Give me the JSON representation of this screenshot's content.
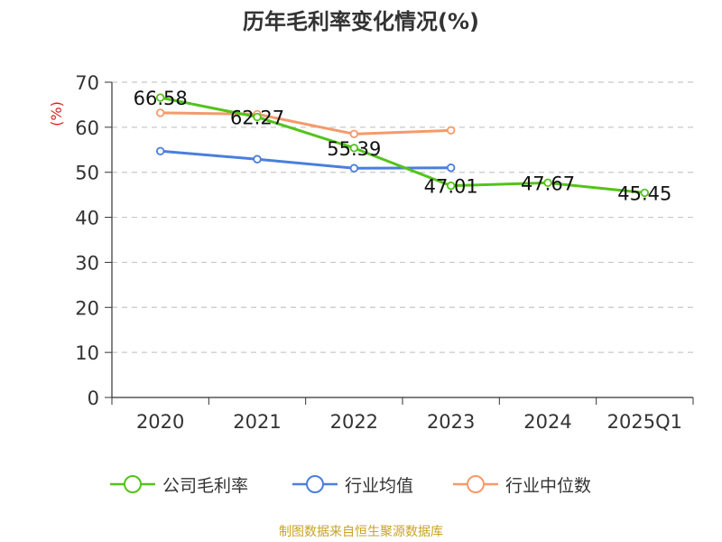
{
  "chart_data": {
    "type": "line",
    "title": "历年毛利率变化情况(%)",
    "ylabel": "(%)",
    "categories": [
      "2020",
      "2021",
      "2022",
      "2023",
      "2024",
      "2025Q1"
    ],
    "ylim": [
      0,
      70
    ],
    "yticks": [
      0,
      10,
      20,
      30,
      40,
      50,
      60,
      70
    ],
    "grid": true,
    "legend_position": "bottom",
    "series": [
      {
        "name": "公司毛利率",
        "color": "#52c41a",
        "values": [
          66.58,
          62.27,
          55.39,
          47.01,
          47.67,
          45.45
        ],
        "labels": [
          "66.58",
          "62.27",
          "55.39",
          "47.01",
          "47.67",
          "45.45"
        ]
      },
      {
        "name": "行业均值",
        "color": "#4a7fdc",
        "values": [
          54.7,
          52.9,
          50.9,
          51.0,
          null,
          null
        ]
      },
      {
        "name": "行业中位数",
        "color": "#f59a6a",
        "values": [
          63.2,
          62.9,
          58.5,
          59.3,
          null,
          null
        ]
      }
    ]
  },
  "source": "制图数据来自恒生聚源数据库"
}
